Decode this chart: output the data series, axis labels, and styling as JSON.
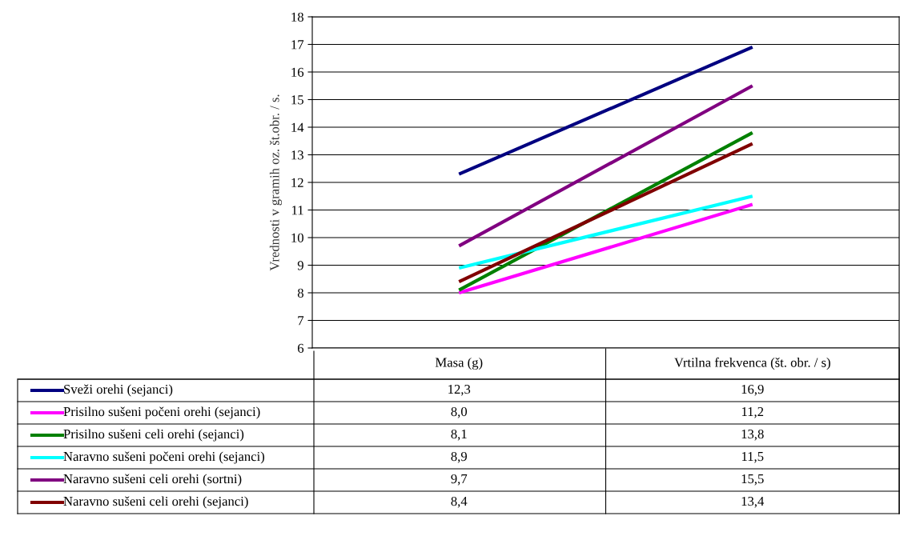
{
  "chart_data": {
    "type": "line",
    "ylabel": "Vrednosti v gramih oz. št.obr. / s.",
    "categories": [
      "Masa (g)",
      "Vrtilna frekvenca (št. obr. / s)"
    ],
    "ylim": [
      6,
      18
    ],
    "yticks": [
      6,
      7,
      8,
      9,
      10,
      11,
      12,
      13,
      14,
      15,
      16,
      17,
      18
    ],
    "grid": "y",
    "legend": "bottom",
    "marker": "none",
    "line_style": "solid",
    "series": [
      {
        "name": "Sveži orehi (sejanci)",
        "color": "#000080",
        "values": [
          12.3,
          16.9
        ],
        "value_labels": [
          "12,3",
          "16,9"
        ]
      },
      {
        "name": "Prisilno sušeni počeni orehi (sejanci)",
        "color": "#ff00ff",
        "values": [
          8.0,
          11.2
        ],
        "value_labels": [
          "8,0",
          "11,2"
        ]
      },
      {
        "name": "Prisilno sušeni celi orehi (sejanci)",
        "color": "#008000",
        "values": [
          8.1,
          13.8
        ],
        "value_labels": [
          "8,1",
          "13,8"
        ]
      },
      {
        "name": "Naravno sušeni počeni orehi (sejanci)",
        "color": "#00ffff",
        "values": [
          8.9,
          11.5
        ],
        "value_labels": [
          "8,9",
          "11,5"
        ]
      },
      {
        "name": "Naravno sušeni celi orehi (sortni)",
        "color": "#800080",
        "values": [
          9.7,
          15.5
        ],
        "value_labels": [
          "9,7",
          "15,5"
        ]
      },
      {
        "name": "Naravno sušeni celi orehi (sejanci)",
        "color": "#800000",
        "values": [
          8.4,
          13.4
        ],
        "value_labels": [
          "8,4",
          "13,4"
        ]
      }
    ]
  }
}
